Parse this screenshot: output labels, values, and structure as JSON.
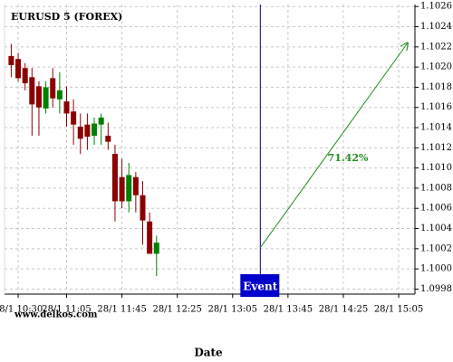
{
  "chart_data": {
    "type": "candlestick",
    "title": "EURUSD 5 (FOREX)",
    "xlabel": "Date",
    "watermark": "www.delkos.com",
    "open": [
      1.10211,
      1.10208,
      1.10199,
      1.1019,
      1.10181,
      1.10159,
      1.10189,
      1.10168,
      1.10166,
      1.10156,
      1.10141,
      1.10143,
      1.10132,
      1.10143,
      1.10132,
      1.10114,
      1.10091,
      1.10067,
      1.10091,
      1.10073,
      1.10047,
      1.10015
    ],
    "high": [
      1.10223,
      1.10214,
      1.10204,
      1.10199,
      1.10186,
      1.10186,
      1.10199,
      1.10195,
      1.10181,
      1.10168,
      1.10154,
      1.10154,
      1.1015,
      1.10154,
      1.10145,
      1.10123,
      1.10109,
      1.10105,
      1.10096,
      1.10087,
      1.10056,
      1.10033
    ],
    "low": [
      1.1019,
      1.10186,
      1.10177,
      1.10132,
      1.10132,
      1.10154,
      1.1016,
      1.10154,
      1.10141,
      1.10123,
      1.10114,
      1.10118,
      1.10123,
      1.10123,
      1.10118,
      1.10047,
      1.1006,
      1.10056,
      1.10056,
      1.10024,
      1.10015,
      1.09993
    ],
    "close": [
      1.10202,
      1.10189,
      1.10184,
      1.10163,
      1.1016,
      1.1018,
      1.10169,
      1.10177,
      1.10154,
      1.10143,
      1.10129,
      1.10131,
      1.10144,
      1.1015,
      1.10126,
      1.10067,
      1.10067,
      1.10093,
      1.10073,
      1.10048,
      1.10015,
      1.10026
    ],
    "up_color": "#008000",
    "down_color": "#8b0000",
    "xlim": [
      -0.97,
      58.35
    ],
    "xticks": [
      {
        "value": 1,
        "label": "28/1 10:30"
      },
      {
        "value": 8,
        "label": "28/1 11:05"
      },
      {
        "value": 16,
        "label": "28/1 11:45"
      },
      {
        "value": 24,
        "label": "28/1 12:25"
      },
      {
        "value": 32,
        "label": "28/1 13:05"
      },
      {
        "value": 40,
        "label": "28/1 13:45"
      },
      {
        "value": 48,
        "label": "28/1 14:25"
      },
      {
        "value": 56,
        "label": "28/1 15:05"
      }
    ],
    "ylim": [
      1.09975,
      1.10262
    ],
    "yticks": [
      1.0998,
      {
        "value": 1.1,
        "label": "1.1000"
      },
      1.1002,
      1.1004,
      1.1006,
      1.1008,
      {
        "value": 1.101,
        "label": "1.1010"
      },
      1.1012,
      1.1014,
      1.1016,
      1.1018,
      {
        "value": 1.102,
        "label": "1.1020"
      },
      1.1022,
      1.1024,
      1.1026
    ],
    "grid": true,
    "event": {
      "label": "Event",
      "x": 36,
      "color": "#0000cc"
    },
    "projection": {
      "x": [
        36,
        57.3
      ],
      "values": [
        1.10021,
        1.10224
      ],
      "label": "71.42%",
      "color": "#228b22"
    }
  }
}
